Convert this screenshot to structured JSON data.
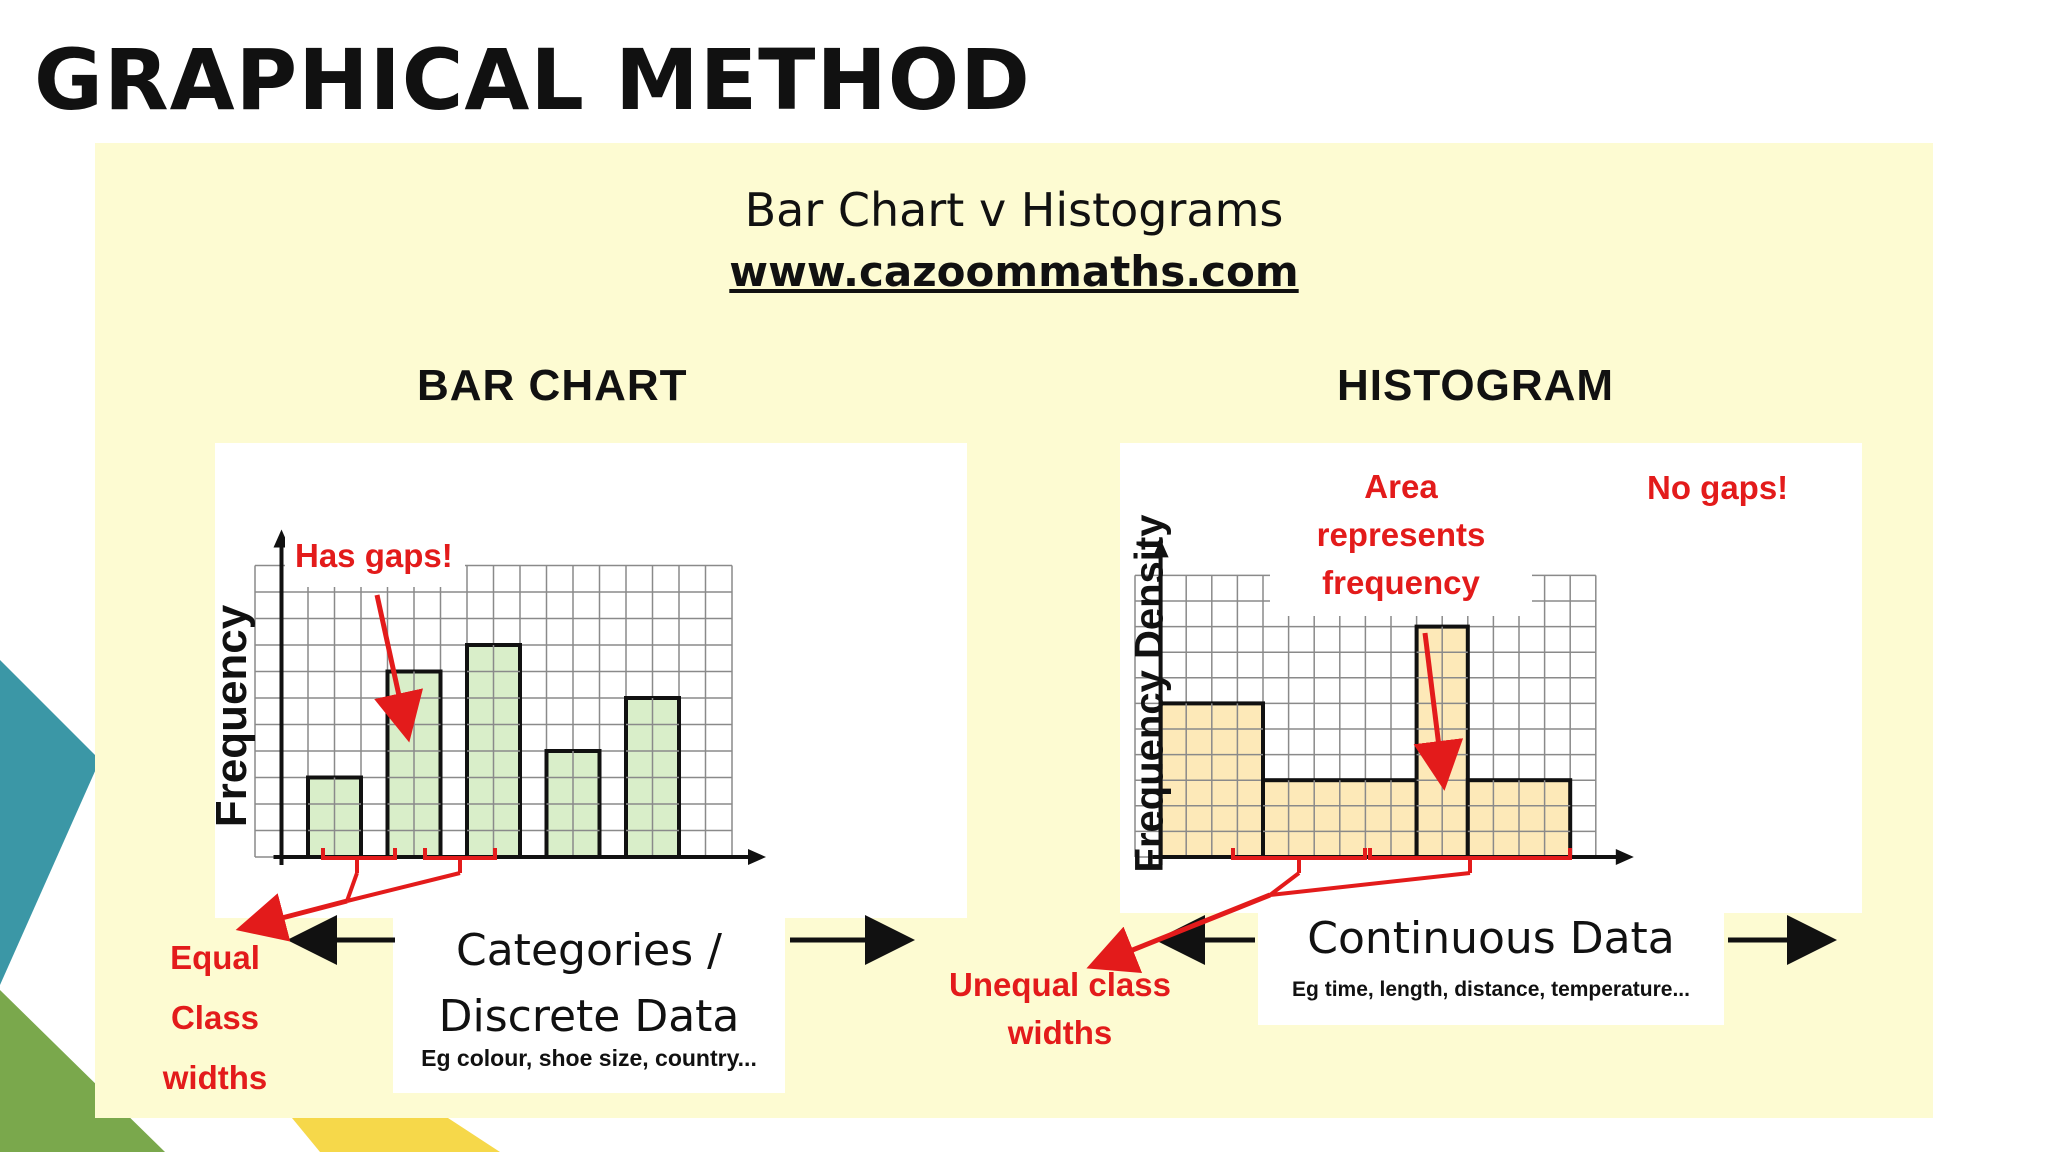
{
  "slide": {
    "title": "GRAPHICAL METHOD"
  },
  "image": {
    "title": "Bar Chart v Histograms",
    "url": "www.cazoommaths.com"
  },
  "bar_chart": {
    "heading": "BAR CHART",
    "ylabel": "Frequency",
    "callout_gaps": "Has gaps!",
    "callout_equal": [
      "Equal",
      "Class",
      "widths"
    ],
    "category_title": [
      "Categories /",
      "Discrete Data"
    ],
    "category_examples": "Eg colour, shoe size,  country...",
    "fill": "#d9eec9"
  },
  "histogram": {
    "heading": "HISTOGRAM",
    "ylabel": "Frequency Density",
    "callout_area": [
      "Area",
      "represents",
      "frequency"
    ],
    "callout_nogaps": "No gaps!",
    "callout_unequal": [
      "Unequal class",
      "widths"
    ],
    "data_title": "Continuous Data",
    "data_examples": "Eg time, length, distance, temperature...",
    "fill": "#fde9b8"
  },
  "colors": {
    "accent_red": "#e31b1b",
    "panel": "#fdfbd2",
    "teal": "#3b97a6",
    "green": "#7aa84c",
    "yellow": "#f6d84a"
  },
  "chart_data": [
    {
      "type": "bar",
      "categories": [
        "",
        "",
        "",
        "",
        ""
      ],
      "values": [
        3,
        7,
        8,
        4,
        6
      ],
      "ylabel": "Frequency",
      "xlabel": ""
    },
    {
      "type": "bar",
      "bins": [
        [
          0,
          4
        ],
        [
          4,
          10
        ],
        [
          10,
          12
        ],
        [
          12,
          16
        ]
      ],
      "values": [
        6,
        3,
        9,
        3
      ],
      "ylabel": "Frequency Density",
      "xlabel": ""
    }
  ]
}
